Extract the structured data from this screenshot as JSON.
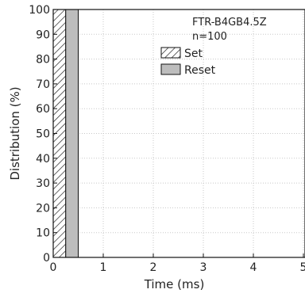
{
  "chart_data": {
    "type": "bar",
    "title": "",
    "annotation_lines": [
      "FTR-B4GB4.5Z",
      "n=100"
    ],
    "xlabel": "Time (ms)",
    "ylabel": "Distribution (%)",
    "xlim": [
      0,
      5
    ],
    "ylim": [
      0,
      100
    ],
    "x_ticks": [
      0,
      1,
      2,
      3,
      4,
      5
    ],
    "y_ticks": [
      0,
      10,
      20,
      30,
      40,
      50,
      60,
      70,
      80,
      90,
      100
    ],
    "grid": true,
    "legend_position": "top-right",
    "series": [
      {
        "name": "Set",
        "x_start": 0,
        "x_end": 0.25,
        "value": 100,
        "pattern": "hatched",
        "color": "#ffffff"
      },
      {
        "name": "Reset",
        "x_start": 0.25,
        "x_end": 0.5,
        "value": 100,
        "pattern": "solid",
        "color": "#bdbdbd"
      }
    ]
  }
}
